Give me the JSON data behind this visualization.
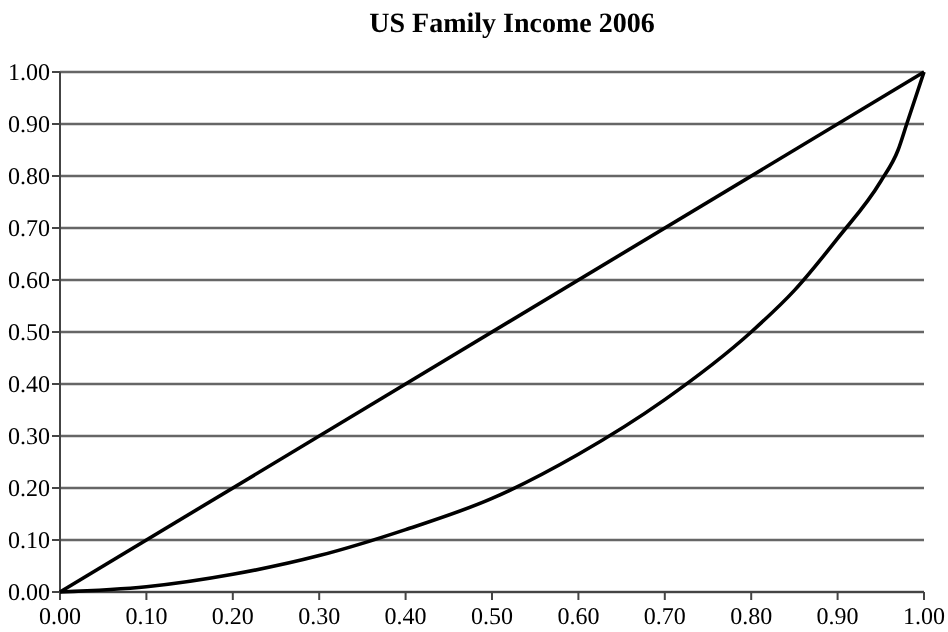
{
  "chart_data": {
    "type": "line",
    "title": "US Family Income 2006",
    "series": [
      {
        "color": "#000000",
        "x": [
          0,
          1
        ],
        "values": [
          0,
          1
        ]
      },
      {
        "color": "#000000",
        "x": [
          0,
          0.1,
          0.2,
          0.3,
          0.4,
          0.5,
          0.6,
          0.7,
          0.8,
          0.85,
          0.9,
          0.95,
          0.97,
          0.98,
          1
        ],
        "values": [
          0,
          0.01,
          0.034,
          0.07,
          0.12,
          0.18,
          0.265,
          0.37,
          0.5,
          0.58,
          0.68,
          0.79,
          0.85,
          0.9,
          1
        ]
      }
    ],
    "xlim": [
      0,
      1
    ],
    "ylim": [
      0,
      1
    ],
    "xticks": [
      {
        "value": 0,
        "label": "0.00"
      },
      {
        "value": 0.1,
        "label": "0.10"
      },
      {
        "value": 0.2,
        "label": "0.20"
      },
      {
        "value": 0.3,
        "label": "0.30"
      },
      {
        "value": 0.4,
        "label": "0.40"
      },
      {
        "value": 0.5,
        "label": "0.50"
      },
      {
        "value": 0.6,
        "label": "0.60"
      },
      {
        "value": 0.7,
        "label": "0.70"
      },
      {
        "value": 0.8,
        "label": "0.80"
      },
      {
        "value": 0.9,
        "label": "0.90"
      },
      {
        "value": 1,
        "label": "1.00"
      }
    ],
    "yticks": [
      {
        "value": 0,
        "label": "0.00"
      },
      {
        "value": 0.1,
        "label": "0.10"
      },
      {
        "value": 0.2,
        "label": "0.20"
      },
      {
        "value": 0.3,
        "label": "0.30"
      },
      {
        "value": 0.4,
        "label": "0.40"
      },
      {
        "value": 0.5,
        "label": "0.50"
      },
      {
        "value": 0.6,
        "label": "0.60"
      },
      {
        "value": 0.7,
        "label": "0.70"
      },
      {
        "value": 0.8,
        "label": "0.80"
      },
      {
        "value": 0.9,
        "label": "0.90"
      },
      {
        "value": 1,
        "label": "1.00"
      }
    ],
    "grid": "y",
    "marker": "none",
    "line_style": "solid"
  }
}
